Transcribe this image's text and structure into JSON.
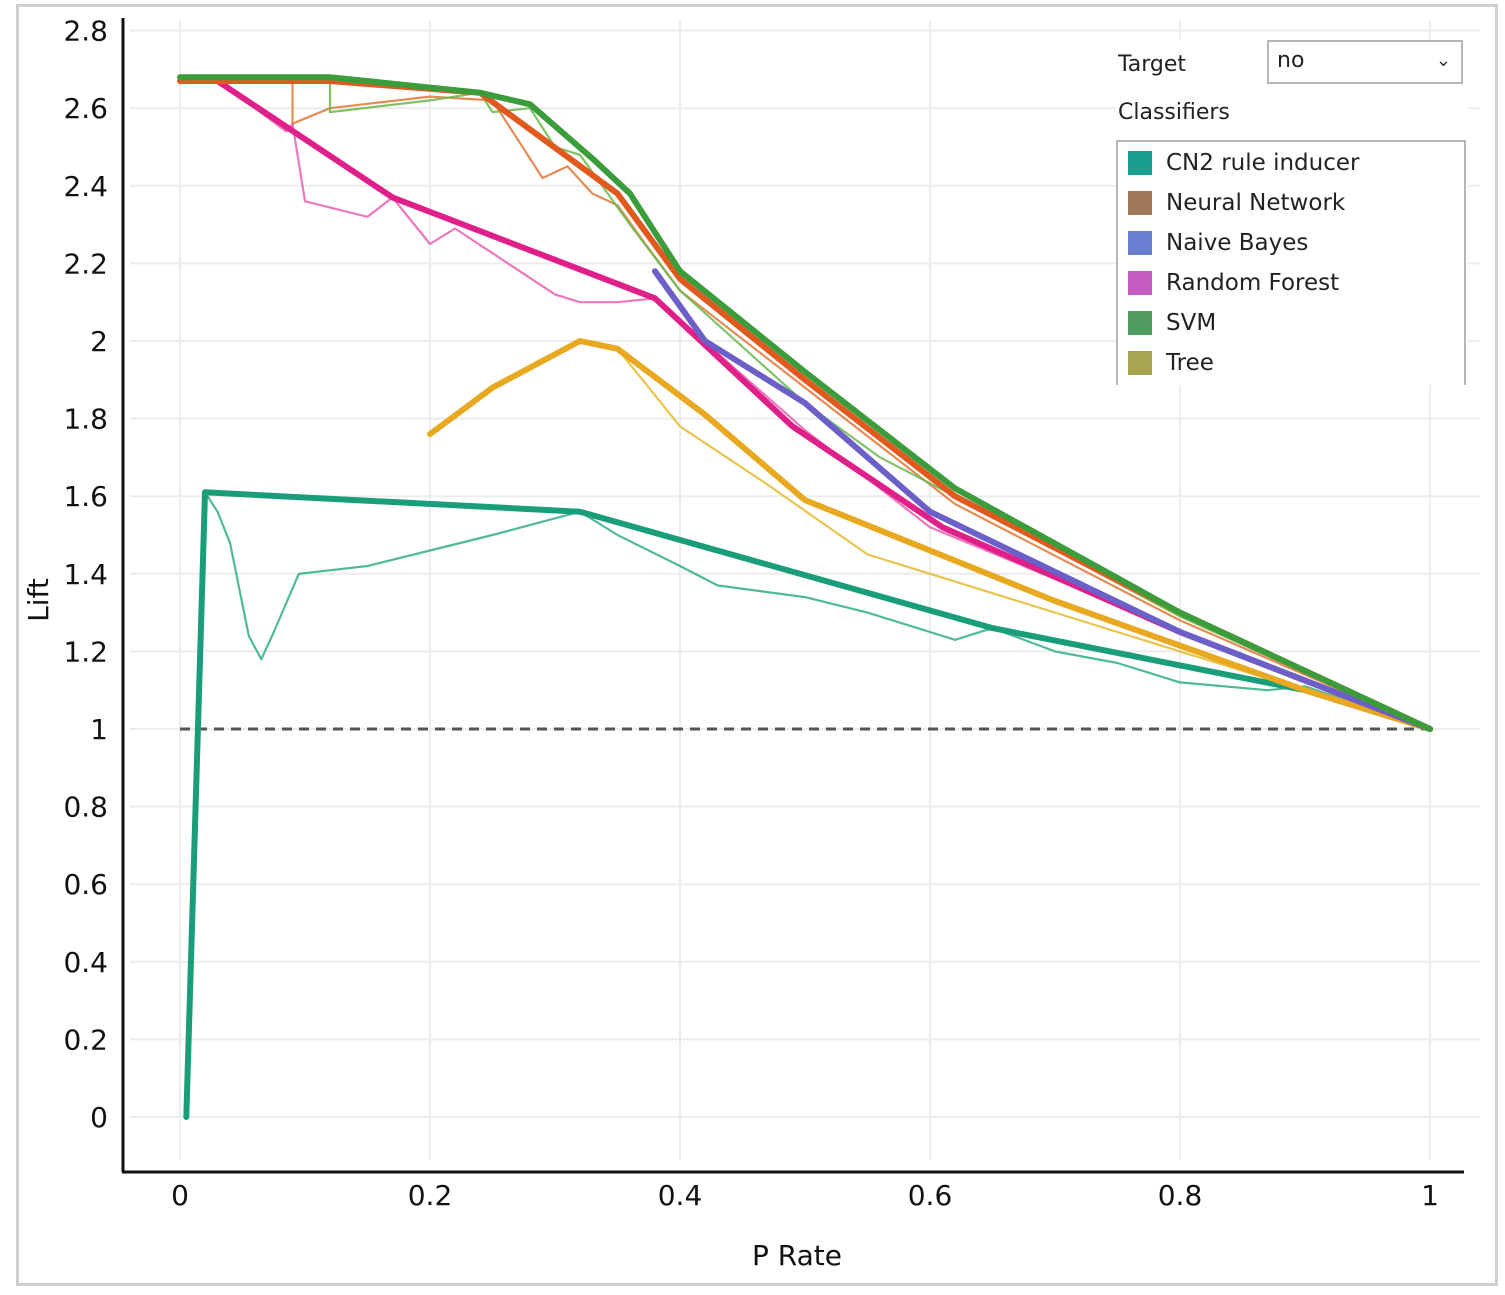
{
  "controls": {
    "target_label": "Target",
    "target_value": "no",
    "classifiers_label": "Classifiers",
    "classifiers": [
      {
        "label": "CN2 rule inducer",
        "color": "#1a9e8f"
      },
      {
        "label": "Neural Network",
        "color": "#a0785a"
      },
      {
        "label": "Naive Bayes",
        "color": "#6a7fd0"
      },
      {
        "label": "Random Forest",
        "color": "#c45cc2"
      },
      {
        "label": "SVM",
        "color": "#4f9c5e"
      },
      {
        "label": "Tree",
        "color": "#a8a650"
      }
    ]
  },
  "chart_data": {
    "type": "line",
    "xlabel": "P Rate",
    "ylabel": "Lift",
    "xlim": [
      0,
      1
    ],
    "ylim": [
      -0.14,
      2.8
    ],
    "x_ticks": [
      "0",
      "0.2",
      "0.4",
      "0.6",
      "0.8",
      "1"
    ],
    "y_ticks": [
      "0",
      "0.2",
      "0.4",
      "0.6",
      "0.8",
      "1",
      "1.2",
      "1.4",
      "1.6",
      "1.8",
      "2",
      "2.2",
      "2.4",
      "2.6",
      "2.8"
    ],
    "grid": true,
    "legend": "top-right",
    "baseline": {
      "y": 1,
      "style": "dashed",
      "color": "#555555"
    },
    "series": [
      {
        "color": "#1a9e7a",
        "style": "hull",
        "x": [
          0.005,
          0.02,
          0.32,
          0.65,
          0.9,
          1.0
        ],
        "y": [
          0.0,
          1.61,
          1.56,
          1.26,
          1.1,
          1.0
        ]
      },
      {
        "color": "#2fae8a",
        "style": "curve",
        "x": [
          0.02,
          0.03,
          0.04,
          0.055,
          0.065,
          0.075,
          0.095,
          0.15,
          0.2,
          0.25,
          0.32,
          0.35,
          0.4,
          0.43,
          0.5,
          0.55,
          0.62,
          0.65,
          0.7,
          0.75,
          0.8,
          0.87,
          0.9,
          1.0
        ],
        "y": [
          1.61,
          1.56,
          1.48,
          1.24,
          1.18,
          1.25,
          1.4,
          1.42,
          1.46,
          1.5,
          1.56,
          1.5,
          1.42,
          1.37,
          1.34,
          1.3,
          1.23,
          1.26,
          1.2,
          1.17,
          1.12,
          1.1,
          1.11,
          1.0
        ]
      },
      {
        "color": "#e8a820",
        "style": "hull",
        "x": [
          0.2,
          0.25,
          0.32,
          0.35,
          0.42,
          0.5,
          0.7,
          0.9,
          1.0
        ],
        "y": [
          1.76,
          1.88,
          2.0,
          1.98,
          1.81,
          1.59,
          1.33,
          1.1,
          1.0
        ]
      },
      {
        "color": "#e8b830",
        "style": "curve",
        "x": [
          0.2,
          0.25,
          0.32,
          0.35,
          0.4,
          0.47,
          0.55,
          0.75,
          1.0
        ],
        "y": [
          1.76,
          1.88,
          2.0,
          1.98,
          1.78,
          1.63,
          1.45,
          1.25,
          1.0
        ]
      },
      {
        "color": "#e0208a",
        "style": "hull",
        "x": [
          0.03,
          0.17,
          0.38,
          0.49,
          0.61,
          0.8,
          1.0
        ],
        "y": [
          2.67,
          2.37,
          2.11,
          1.78,
          1.52,
          1.25,
          1.0
        ]
      },
      {
        "color": "#e860b0",
        "style": "curve",
        "x": [
          0.03,
          0.06,
          0.085,
          0.09,
          0.1,
          0.15,
          0.17,
          0.2,
          0.22,
          0.3,
          0.32,
          0.35,
          0.38,
          0.5,
          0.6,
          0.75,
          0.9,
          1.0
        ],
        "y": [
          2.67,
          2.6,
          2.54,
          2.56,
          2.36,
          2.32,
          2.37,
          2.25,
          2.29,
          2.12,
          2.1,
          2.1,
          2.11,
          1.77,
          1.52,
          1.32,
          1.12,
          1.0
        ]
      },
      {
        "color": "#6a60c8",
        "style": "hull",
        "x": [
          0.38,
          0.42,
          0.5,
          0.6,
          0.8,
          1.0
        ],
        "y": [
          2.18,
          2.0,
          1.84,
          1.56,
          1.25,
          1.0
        ]
      },
      {
        "color": "#e05a20",
        "style": "hull",
        "x": [
          0.0,
          0.12,
          0.24,
          0.35,
          0.4,
          0.5,
          0.62,
          0.8,
          1.0
        ],
        "y": [
          2.67,
          2.67,
          2.64,
          2.38,
          2.16,
          1.9,
          1.6,
          1.3,
          1.0
        ]
      },
      {
        "color": "#e07838",
        "style": "curve",
        "x": [
          0.0,
          0.09,
          0.09,
          0.12,
          0.2,
          0.25,
          0.27,
          0.29,
          0.31,
          0.33,
          0.35,
          0.37,
          0.4,
          0.5,
          0.62,
          0.8,
          1.0
        ],
        "y": [
          2.67,
          2.67,
          2.56,
          2.6,
          2.63,
          2.62,
          2.52,
          2.42,
          2.45,
          2.38,
          2.35,
          2.26,
          2.13,
          1.88,
          1.58,
          1.28,
          1.0
        ]
      },
      {
        "color": "#3a9c3a",
        "style": "hull",
        "x": [
          0.0,
          0.12,
          0.24,
          0.28,
          0.33,
          0.36,
          0.4,
          0.5,
          0.62,
          0.8,
          1.0
        ],
        "y": [
          2.68,
          2.68,
          2.64,
          2.61,
          2.47,
          2.38,
          2.18,
          1.92,
          1.62,
          1.3,
          1.0
        ]
      },
      {
        "color": "#6ab84a",
        "style": "curve",
        "x": [
          0.12,
          0.12,
          0.2,
          0.24,
          0.25,
          0.28,
          0.3,
          0.32,
          0.36,
          0.4,
          0.5,
          0.56,
          0.62,
          0.8,
          1.0
        ],
        "y": [
          2.68,
          2.59,
          2.62,
          2.64,
          2.59,
          2.6,
          2.5,
          2.48,
          2.3,
          2.13,
          1.84,
          1.7,
          1.6,
          1.29,
          1.0
        ]
      }
    ]
  }
}
